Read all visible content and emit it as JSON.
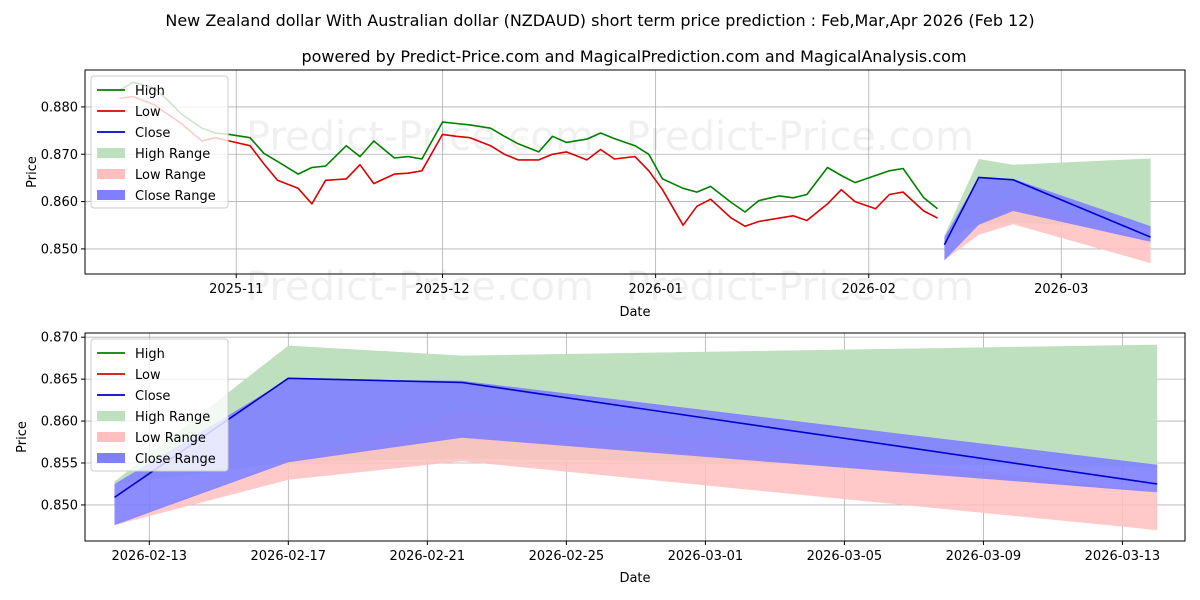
{
  "title": "New Zealand dollar With Australian dollar (NZDAUD) short term price prediction : Feb,Mar,Apr 2026 (Feb 12)",
  "subtitle": "powered by Predict-Price.com and MagicalPrediction.com and MagicalAnalysis.com",
  "watermark": "Predict-Price.com",
  "colors": {
    "high": "#008000",
    "low": "#dd0000",
    "close": "#0000cc",
    "high_range": "#bfe0bf",
    "low_range": "#ffbfbf",
    "close_range": "#7f7fff"
  },
  "legend": [
    "High",
    "Low",
    "Close",
    "High Range",
    "Low Range",
    "Close Range"
  ],
  "chart_data": [
    {
      "type": "line",
      "name": "history",
      "xlabel": "Date",
      "ylabel": "Price",
      "xlim": [
        "2025-10-10",
        "2026-03-19"
      ],
      "ylim": [
        0.8447,
        0.8878
      ],
      "grid": true,
      "legend_position": "top-left",
      "x_ticks": [
        "2025-11-01",
        "2025-12-01",
        "2026-01-01",
        "2026-02-01",
        "2026-03-01"
      ],
      "x_tick_labels": [
        "2025-11",
        "2025-12",
        "2026-01",
        "2026-02",
        "2026-03"
      ],
      "y_ticks": [
        0.85,
        0.86,
        0.87,
        0.88
      ],
      "y_tick_labels": [
        "0.850",
        "0.860",
        "0.870",
        "0.880"
      ],
      "series": [
        {
          "name": "High",
          "x": [
            "2025-10-15",
            "2025-10-17",
            "2025-10-20",
            "2025-10-22",
            "2025-10-24",
            "2025-10-27",
            "2025-10-29",
            "2025-10-31",
            "2025-11-03",
            "2025-11-05",
            "2025-11-07",
            "2025-11-10",
            "2025-11-12",
            "2025-11-14",
            "2025-11-17",
            "2025-11-19",
            "2025-11-21",
            "2025-11-24",
            "2025-11-26",
            "2025-11-28",
            "2025-12-01",
            "2025-12-03",
            "2025-12-05",
            "2025-12-08",
            "2025-12-10",
            "2025-12-12",
            "2025-12-15",
            "2025-12-17",
            "2025-12-19",
            "2025-12-22",
            "2025-12-24",
            "2025-12-26",
            "2025-12-29",
            "2025-12-31",
            "2026-01-02",
            "2026-01-05",
            "2026-01-07",
            "2026-01-09",
            "2026-01-12",
            "2026-01-14",
            "2026-01-16",
            "2026-01-19",
            "2026-01-21",
            "2026-01-23",
            "2026-01-26",
            "2026-01-28",
            "2026-01-30",
            "2026-02-02",
            "2026-02-04",
            "2026-02-06",
            "2026-02-09",
            "2026-02-11"
          ],
          "values": [
            0.8835,
            0.8852,
            0.884,
            0.8815,
            0.8785,
            0.8755,
            0.8745,
            0.8742,
            0.8735,
            0.8702,
            0.8685,
            0.8658,
            0.8672,
            0.8675,
            0.8718,
            0.8695,
            0.8728,
            0.8692,
            0.8695,
            0.869,
            0.8768,
            0.8765,
            0.8762,
            0.8755,
            0.8738,
            0.8722,
            0.8705,
            0.8738,
            0.8725,
            0.8732,
            0.8745,
            0.8733,
            0.8718,
            0.87,
            0.8648,
            0.8628,
            0.862,
            0.8632,
            0.8598,
            0.8578,
            0.8602,
            0.8612,
            0.8608,
            0.8615,
            0.8672,
            0.8655,
            0.864,
            0.8655,
            0.8665,
            0.867,
            0.8608,
            0.8585
          ]
        },
        {
          "name": "Low",
          "x": [
            "2025-10-15",
            "2025-10-17",
            "2025-10-20",
            "2025-10-22",
            "2025-10-24",
            "2025-10-27",
            "2025-10-29",
            "2025-10-31",
            "2025-11-03",
            "2025-11-05",
            "2025-11-07",
            "2025-11-10",
            "2025-11-12",
            "2025-11-14",
            "2025-11-17",
            "2025-11-19",
            "2025-11-21",
            "2025-11-24",
            "2025-11-26",
            "2025-11-28",
            "2025-12-01",
            "2025-12-03",
            "2025-12-05",
            "2025-12-08",
            "2025-12-10",
            "2025-12-12",
            "2025-12-15",
            "2025-12-17",
            "2025-12-19",
            "2025-12-22",
            "2025-12-24",
            "2025-12-26",
            "2025-12-29",
            "2025-12-31",
            "2026-01-02",
            "2026-01-05",
            "2026-01-07",
            "2026-01-09",
            "2026-01-12",
            "2026-01-14",
            "2026-01-16",
            "2026-01-19",
            "2026-01-21",
            "2026-01-23",
            "2026-01-26",
            "2026-01-28",
            "2026-01-30",
            "2026-02-02",
            "2026-02-04",
            "2026-02-06",
            "2026-02-09",
            "2026-02-11"
          ],
          "values": [
            0.8818,
            0.8822,
            0.8805,
            0.8785,
            0.8765,
            0.8728,
            0.8735,
            0.8728,
            0.8718,
            0.868,
            0.8645,
            0.8628,
            0.8595,
            0.8645,
            0.8648,
            0.8678,
            0.8638,
            0.8658,
            0.866,
            0.8665,
            0.8742,
            0.8738,
            0.8735,
            0.8718,
            0.87,
            0.8688,
            0.8688,
            0.87,
            0.8705,
            0.8688,
            0.871,
            0.869,
            0.8695,
            0.8665,
            0.8625,
            0.855,
            0.859,
            0.8605,
            0.8565,
            0.8548,
            0.8558,
            0.8565,
            0.857,
            0.856,
            0.8595,
            0.8625,
            0.86,
            0.8585,
            0.8615,
            0.862,
            0.858,
            0.8565
          ]
        },
        {
          "name": "Close",
          "x": [
            "2026-02-12",
            "2026-02-17",
            "2026-02-22",
            "2026-03-14"
          ],
          "values": [
            0.8509,
            0.8651,
            0.8646,
            0.8525
          ]
        }
      ],
      "ranges": [
        {
          "name": "High Range",
          "x": [
            "2026-02-12",
            "2026-02-17",
            "2026-02-22",
            "2026-03-14"
          ],
          "lower": [
            0.8525,
            0.8551,
            0.8555,
            0.8545
          ],
          "upper": [
            0.8528,
            0.869,
            0.8678,
            0.8691
          ]
        },
        {
          "name": "Low Range",
          "x": [
            "2026-02-12",
            "2026-02-17",
            "2026-02-22",
            "2026-03-14"
          ],
          "lower": [
            0.8476,
            0.853,
            0.8552,
            0.847
          ],
          "upper": [
            0.8478,
            0.8552,
            0.8612,
            0.8515
          ]
        },
        {
          "name": "Close Range",
          "x": [
            "2026-02-12",
            "2026-02-17",
            "2026-02-22",
            "2026-03-14"
          ],
          "lower": [
            0.8476,
            0.8551,
            0.858,
            0.8515
          ],
          "upper": [
            0.8525,
            0.865,
            0.8648,
            0.8548
          ]
        }
      ]
    },
    {
      "type": "line",
      "name": "forecast-zoom",
      "xlabel": "Date",
      "ylabel": "Price",
      "xlim": [
        "2026-02-11.15",
        "2026-03-14.8"
      ],
      "ylim": [
        0.8457,
        0.8705
      ],
      "grid": true,
      "legend_position": "top-left",
      "x_ticks": [
        "2026-02-13",
        "2026-02-17",
        "2026-02-21",
        "2026-02-25",
        "2026-03-01",
        "2026-03-05",
        "2026-03-09",
        "2026-03-13"
      ],
      "x_tick_labels": [
        "2026-02-13",
        "2026-02-17",
        "2026-02-21",
        "2026-02-25",
        "2026-03-01",
        "2026-03-05",
        "2026-03-09",
        "2026-03-13"
      ],
      "y_ticks": [
        0.85,
        0.855,
        0.86,
        0.865,
        0.87
      ],
      "y_tick_labels": [
        "0.850",
        "0.855",
        "0.860",
        "0.865",
        "0.870"
      ],
      "series": [
        {
          "name": "Close",
          "x": [
            "2026-02-12",
            "2026-02-17",
            "2026-02-22",
            "2026-03-14"
          ],
          "values": [
            0.8509,
            0.8651,
            0.8646,
            0.8525
          ]
        }
      ],
      "ranges": [
        {
          "name": "High Range",
          "x": [
            "2026-02-12",
            "2026-02-17",
            "2026-02-22",
            "2026-03-14"
          ],
          "lower": [
            0.8525,
            0.8551,
            0.8555,
            0.8545
          ],
          "upper": [
            0.8528,
            0.869,
            0.8678,
            0.8691
          ]
        },
        {
          "name": "Low Range",
          "x": [
            "2026-02-12",
            "2026-02-17",
            "2026-02-22",
            "2026-03-14"
          ],
          "lower": [
            0.8476,
            0.853,
            0.8552,
            0.847
          ],
          "upper": [
            0.8478,
            0.8552,
            0.8612,
            0.8515
          ]
        },
        {
          "name": "Close Range",
          "x": [
            "2026-02-12",
            "2026-02-17",
            "2026-02-22",
            "2026-03-14"
          ],
          "lower": [
            0.8476,
            0.8551,
            0.858,
            0.8515
          ],
          "upper": [
            0.8525,
            0.865,
            0.8648,
            0.8548
          ]
        }
      ]
    }
  ]
}
